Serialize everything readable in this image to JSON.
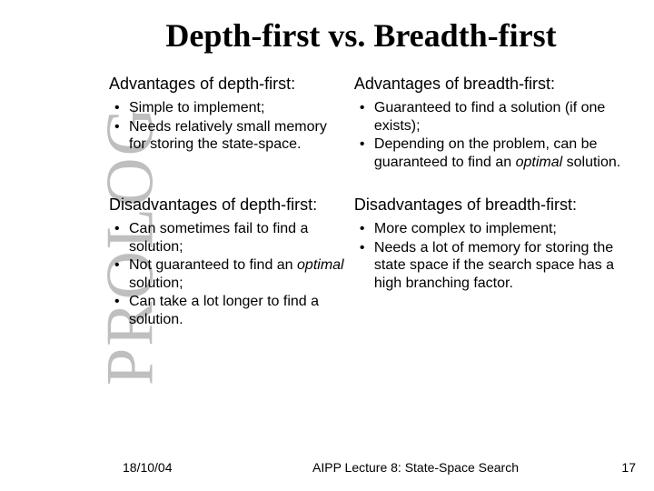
{
  "sidebar": "PROLOG",
  "title": "Depth-first vs. Breadth-first",
  "sections": {
    "adv_depth": {
      "heading": "Advantages of depth-first:",
      "items": [
        "Simple to implement;",
        "Needs relatively small memory for storing the state-space."
      ]
    },
    "adv_breadth": {
      "heading": "Advantages of breadth-first:",
      "items": [
        "Guaranteed to find a solution (if one exists);",
        "Depending on the problem, can be guaranteed to find an <i>optimal</i> solution."
      ]
    },
    "dis_depth": {
      "heading": "Disadvantages of depth-first:",
      "items": [
        "Can sometimes fail to find a solution;",
        "Not guaranteed to find an <i>optimal</i> solution;",
        "Can take a lot longer to find a solution."
      ]
    },
    "dis_breadth": {
      "heading": "Disadvantages of breadth-first:",
      "items": [
        "More complex to implement;",
        "Needs a lot of memory for storing the state space if the search space has a high branching factor."
      ]
    }
  },
  "footer": {
    "date": "18/10/04",
    "lecture": "AIPP Lecture 8: State-Space Search",
    "page": "17"
  },
  "style": {
    "sidebar_color": "#bfbfbf",
    "text_color": "#000000",
    "background": "#ffffff",
    "title_fontsize": 36,
    "heading_fontsize": 18,
    "body_fontsize": 16,
    "footer_fontsize": 14
  }
}
